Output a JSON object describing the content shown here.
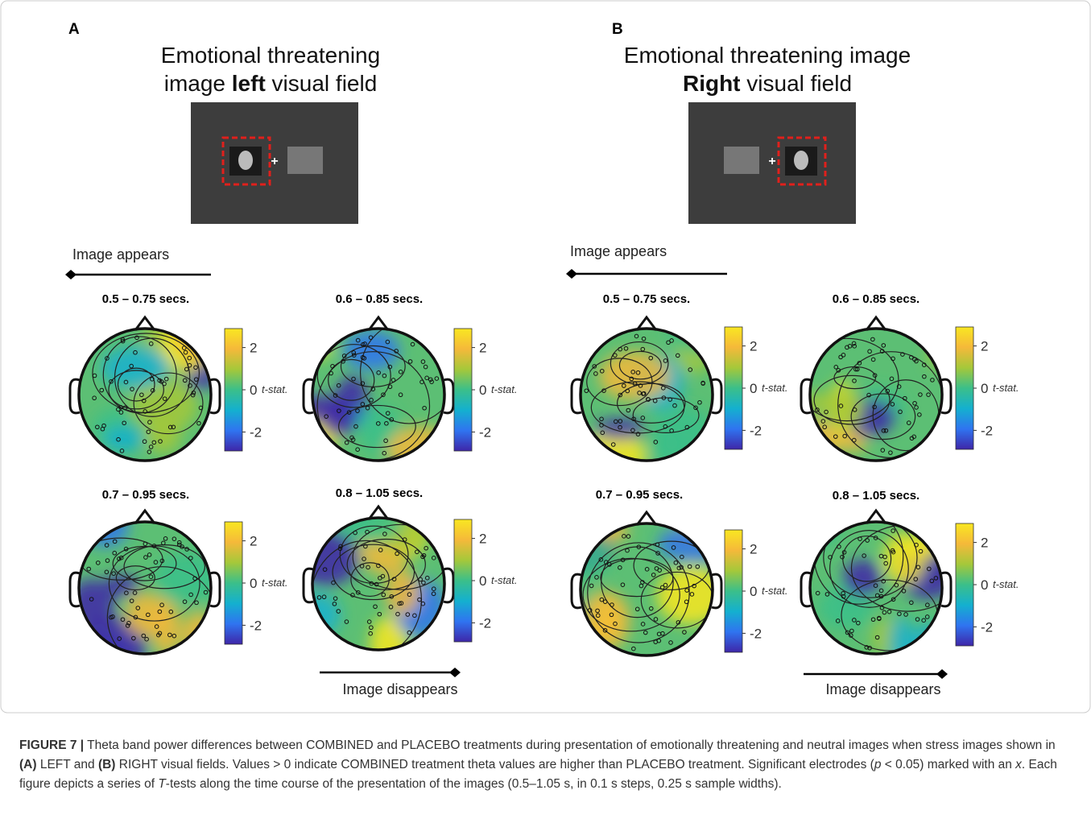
{
  "panels": [
    {
      "letter": "A",
      "title_lines": [
        [
          {
            "text": "Emotional threatening"
          }
        ],
        [
          {
            "text": "image "
          },
          {
            "text": "left",
            "bold": true
          },
          {
            "text": " visual field"
          }
        ]
      ],
      "appears": "Image appears",
      "disappears": "Image disappears",
      "topomaps": [
        "0.5 – 0.75 secs.",
        "0.6 – 0.85 secs.",
        "0.7 – 0.95 secs.",
        "0.8 – 1.05 secs."
      ]
    },
    {
      "letter": "B",
      "title_lines": [
        [
          {
            "text": "Emotional threatening image"
          }
        ],
        [
          {
            "text": "Right",
            "bold": true
          },
          {
            "text": " visual field"
          }
        ]
      ],
      "appears": "Image appears",
      "disappears": "Image disappears",
      "topomaps": [
        "0.5 – 0.75 secs.",
        "0.6 – 0.85 secs.",
        "0.7 – 0.95 secs.",
        "0.8 – 1.05 secs."
      ]
    }
  ],
  "colorbar": {
    "lim": [
      -2.9,
      2.9
    ],
    "ticks": [
      2,
      0,
      -2
    ],
    "label": "t-stat.",
    "colors": [
      "#3e26a8",
      "#2f74f0",
      "#14b0cf",
      "#3bbf8a",
      "#a5c83a",
      "#f5b93a",
      "#f9e721"
    ]
  },
  "caption": [
    {
      "text": "FIGURE 7 |",
      "style": "bold"
    },
    {
      "text": " Theta band power differences between COMBINED and PLACEBO treatments during presentation of emotionally threatening and neutral images when stress images shown in "
    },
    {
      "text": "(A)",
      "style": "bold"
    },
    {
      "text": " LEFT and "
    },
    {
      "text": "(B)",
      "style": "bold"
    },
    {
      "text": " RIGHT visual fields. Values > 0 indicate COMBINED treatment theta values are higher than PLACEBO treatment. Significant electrodes ("
    },
    {
      "text": "p",
      "style": "italic"
    },
    {
      "text": " < 0.05) marked with an "
    },
    {
      "text": "x",
      "style": "italic"
    },
    {
      "text": ". Each figure depicts a series of "
    },
    {
      "text": "T",
      "style": "italic"
    },
    {
      "text": "-tests along the time course of the presentation of the images (0.5–1.05 s, in 0.1 s steps, 0.25 s sample widths)."
    }
  ]
}
